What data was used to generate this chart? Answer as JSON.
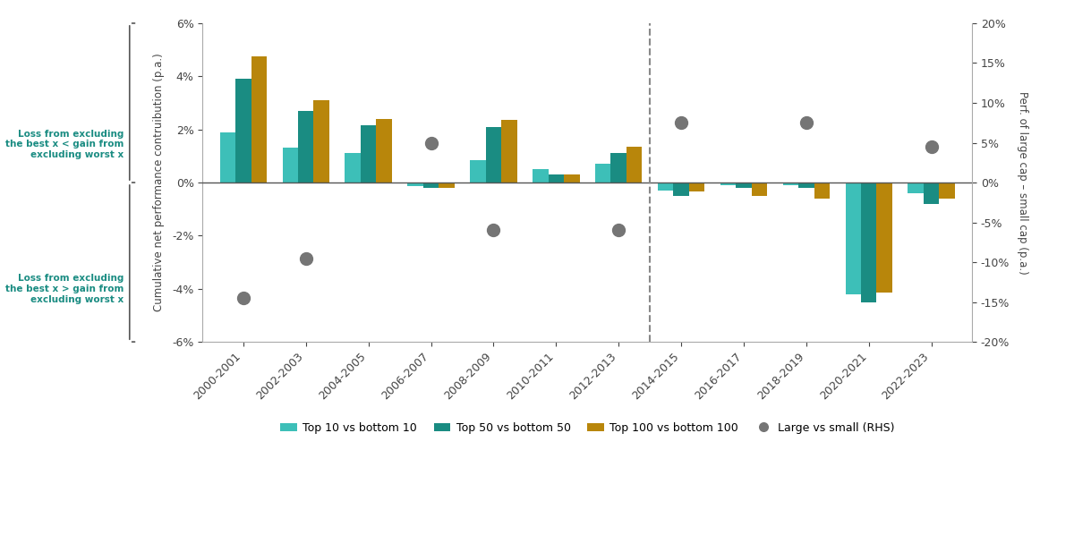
{
  "categories": [
    "2000-2001",
    "2002-2003",
    "2004-2005",
    "2006-2007",
    "2008-2009",
    "2010-2011",
    "2012-2013",
    "2014-2015",
    "2016-2017",
    "2018-2019",
    "2020-2021",
    "2022-2023"
  ],
  "top10": [
    0.019,
    0.013,
    0.011,
    -0.0015,
    0.0085,
    0.005,
    0.007,
    -0.003,
    -0.001,
    -0.001,
    -0.042,
    -0.004
  ],
  "top50": [
    0.039,
    0.027,
    0.0215,
    -0.002,
    0.021,
    0.003,
    0.011,
    -0.005,
    -0.002,
    -0.002,
    -0.045,
    -0.008
  ],
  "top100": [
    0.0475,
    0.031,
    0.024,
    -0.002,
    0.0235,
    0.003,
    0.0135,
    -0.0035,
    -0.005,
    -0.006,
    -0.0415,
    -0.006
  ],
  "large_vs_small": [
    -0.145,
    -0.095,
    null,
    0.05,
    -0.06,
    null,
    -0.06,
    0.075,
    null,
    0.075,
    null,
    0.045
  ],
  "dashed_line_x": 6.5,
  "ylim_left": [
    -0.06,
    0.06
  ],
  "ylim_right": [
    -0.2,
    0.2
  ],
  "color_top10": "#3DBFB8",
  "color_top50": "#1A8C82",
  "color_top100": "#B8860B",
  "color_dots": "#757575",
  "bar_width": 0.25,
  "ylabel_left": "Cumulative net performance contruibution (p.a.)",
  "ylabel_right": "Perf. of large cap – small cap (p.a.)",
  "legend_top10": "Top 10 vs bottom 10",
  "legend_top50": "Top 50 vs bottom 50",
  "legend_top100": "Top 100 vs bottom 100",
  "legend_dots": "Large vs small (RHS)",
  "annotation_above": "Loss from excluding\nthe best x < gain from\nexcluding worst x",
  "annotation_below": "Loss from excluding\nthe best x > gain from\nexcluding worst x"
}
